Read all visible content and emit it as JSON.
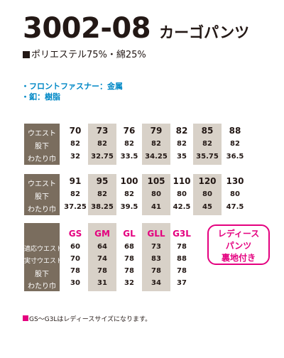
{
  "header": {
    "model": "3002-08",
    "product_name": "カーゴパンツ",
    "material_mark": "■",
    "material": "ポリエステル75%・綿25%"
  },
  "features": [
    "・フロントファスナー：金属",
    "・釦：樹脂"
  ],
  "table1": {
    "row_labels": [
      "ウエスト",
      "股下",
      "わたり巾"
    ],
    "columns": [
      {
        "waist": "70",
        "inseam": "82",
        "thigh": "32",
        "shaded": false
      },
      {
        "waist": "73",
        "inseam": "82",
        "thigh": "32.75",
        "shaded": true
      },
      {
        "waist": "76",
        "inseam": "82",
        "thigh": "33.5",
        "shaded": false
      },
      {
        "waist": "79",
        "inseam": "82",
        "thigh": "34.25",
        "shaded": true
      },
      {
        "waist": "82",
        "inseam": "82",
        "thigh": "35",
        "shaded": false
      },
      {
        "waist": "85",
        "inseam": "82",
        "thigh": "35.75",
        "shaded": true
      },
      {
        "waist": "88",
        "inseam": "82",
        "thigh": "36.5",
        "shaded": false
      }
    ]
  },
  "table2": {
    "row_labels": [
      "ウエスト",
      "股下",
      "わたり巾"
    ],
    "columns": [
      {
        "waist": "91",
        "inseam": "82",
        "thigh": "37.25",
        "shaded": false
      },
      {
        "waist": "95",
        "inseam": "82",
        "thigh": "38.25",
        "shaded": true
      },
      {
        "waist": "100",
        "inseam": "82",
        "thigh": "39.5",
        "shaded": false
      },
      {
        "waist": "105",
        "inseam": "80",
        "thigh": "41",
        "shaded": true
      },
      {
        "waist": "110",
        "inseam": "80",
        "thigh": "42.5",
        "shaded": false
      },
      {
        "waist": "120",
        "inseam": "80",
        "thigh": "45",
        "shaded": true
      },
      {
        "waist": "130",
        "inseam": "80",
        "thigh": "47.5",
        "shaded": false
      }
    ]
  },
  "table3": {
    "row_labels": [
      "適応ウエスト",
      "実寸ウエスト",
      "股下",
      "わたり巾"
    ],
    "columns": [
      {
        "size": "GS",
        "fit_waist": "60",
        "actual_waist": "70",
        "inseam": "78",
        "thigh": "30",
        "shaded": false
      },
      {
        "size": "GM",
        "fit_waist": "64",
        "actual_waist": "74",
        "inseam": "78",
        "thigh": "31",
        "shaded": true
      },
      {
        "size": "GL",
        "fit_waist": "68",
        "actual_waist": "78",
        "inseam": "78",
        "thigh": "32",
        "shaded": false
      },
      {
        "size": "GLL",
        "fit_waist": "73",
        "actual_waist": "83",
        "inseam": "78",
        "thigh": "34",
        "shaded": true
      },
      {
        "size": "G3L",
        "fit_waist": "78",
        "actual_waist": "88",
        "inseam": "78",
        "thigh": "37",
        "shaded": false
      }
    ]
  },
  "ladies_badge": {
    "line1": "レディース",
    "line2": "パンツ",
    "line3": "裏地付き"
  },
  "footnote": {
    "mark": "■",
    "text": "GS〜G3Lはレディースサイズになります。"
  },
  "colors": {
    "header_bg": "#7a6d5e",
    "shade_bg": "#d8d1c8",
    "pink": "#e4007f",
    "feature_blue": "#0088c6"
  }
}
